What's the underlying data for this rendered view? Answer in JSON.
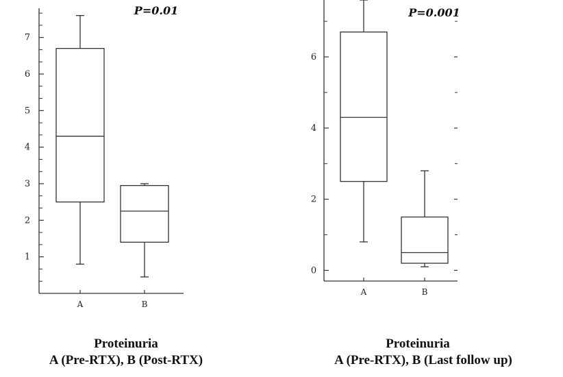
{
  "chart_data": [
    {
      "type": "box",
      "title": "P=0.01",
      "caption_line1": "Proteinuria",
      "caption_line2": "A (Pre-RTX), B (Post-RTX)",
      "categories": [
        "A",
        "B"
      ],
      "ylim": [
        0,
        7.8
      ],
      "yticks": [
        1,
        2,
        3,
        4,
        5,
        6,
        7
      ],
      "boxes": [
        {
          "category": "A",
          "min": 0.8,
          "q1": 2.5,
          "median": 4.3,
          "q3": 6.7,
          "max": 7.6
        },
        {
          "category": "B",
          "min": 0.45,
          "q1": 1.4,
          "median": 2.25,
          "q3": 2.95,
          "max": 3.0
        }
      ]
    },
    {
      "type": "box",
      "title": "P=0.001",
      "caption_line1": "Proteinuria",
      "caption_line2": "A (Pre-RTX), B (Last follow up)",
      "categories": [
        "A",
        "B"
      ],
      "ylim": [
        -0.3,
        7.6
      ],
      "yticks": [
        0,
        2,
        4,
        6
      ],
      "boxes": [
        {
          "category": "A",
          "min": 0.8,
          "q1": 2.5,
          "median": 4.3,
          "q3": 6.7,
          "max": 7.6
        },
        {
          "category": "B",
          "min": 0.1,
          "q1": 0.2,
          "median": 0.5,
          "q3": 1.5,
          "max": 2.8
        }
      ]
    }
  ]
}
